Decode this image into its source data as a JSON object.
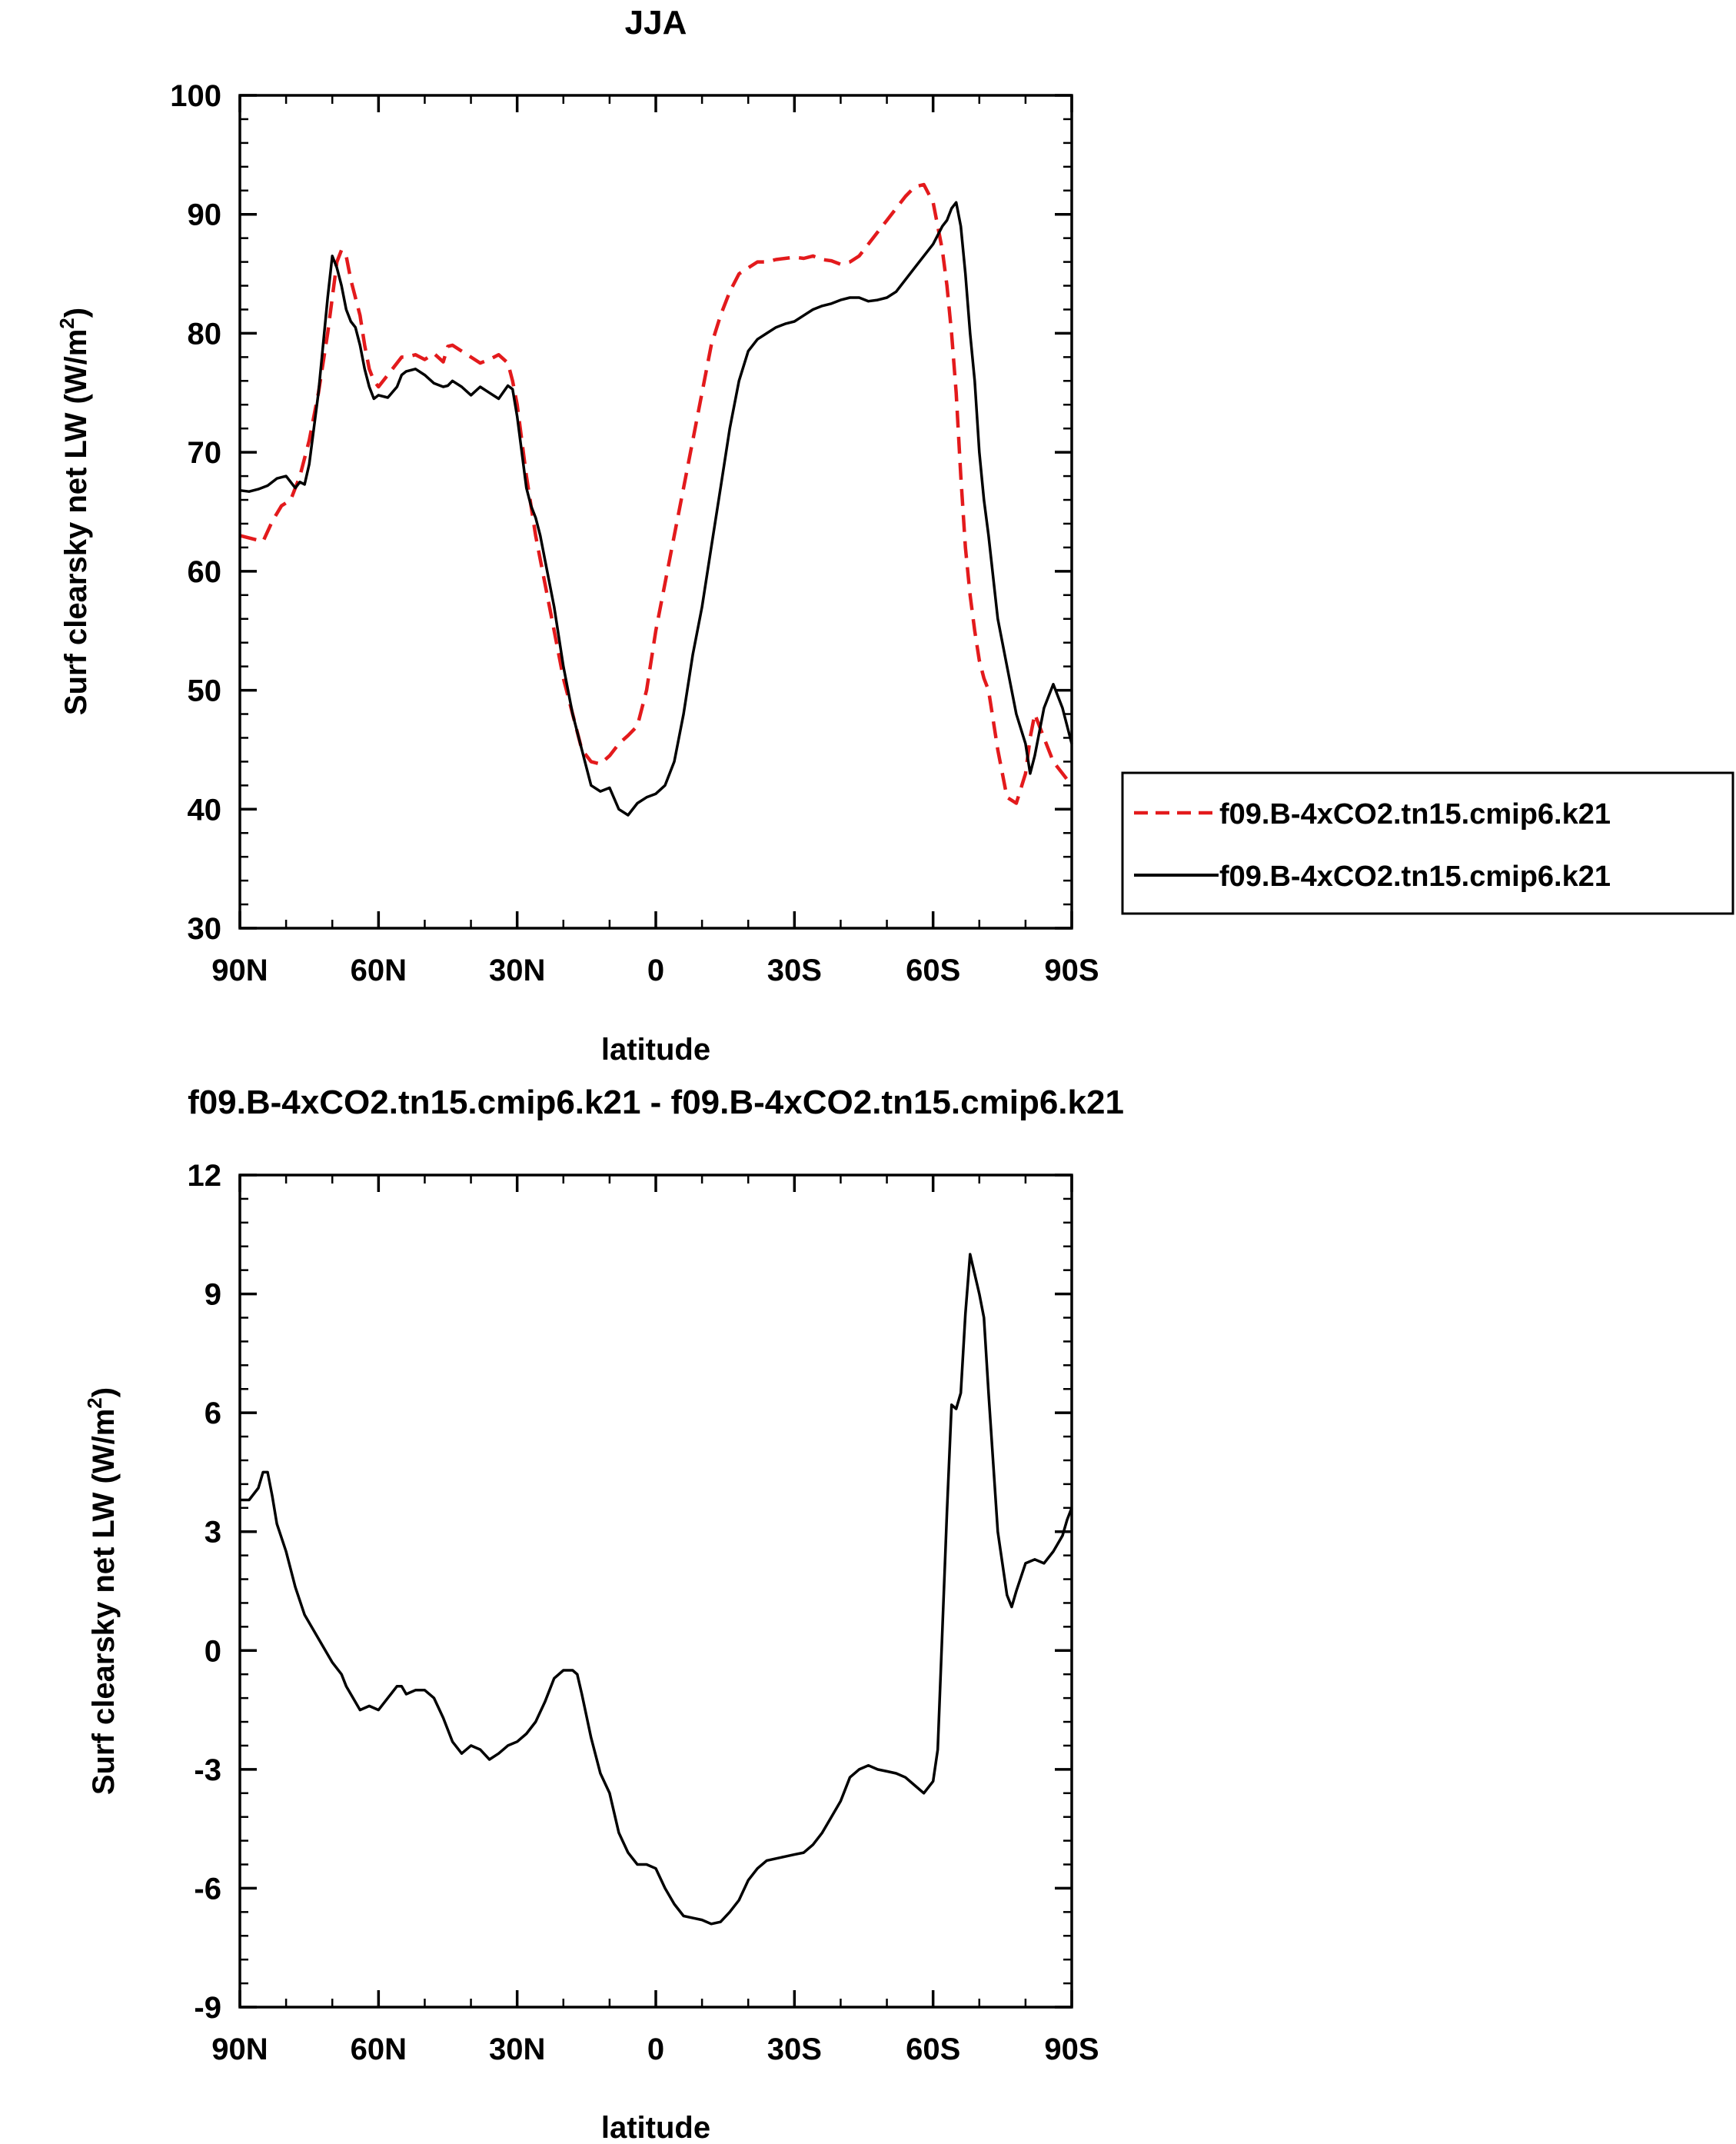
{
  "chart_data": [
    {
      "type": "line",
      "title": "JJA",
      "xlabel": "latitude",
      "ylabel": "Surf clearsky net LW (W/m",
      "ylabel_sup": "2",
      "ylabel_end": ")",
      "xlim": [
        90,
        -90
      ],
      "ylim": [
        30,
        100
      ],
      "xticks": [
        90,
        60,
        30,
        0,
        -30,
        -60,
        -90
      ],
      "xticklabels": [
        "90N",
        "60N",
        "30N",
        "0",
        "30S",
        "60S",
        "90S"
      ],
      "yticks": [
        30,
        40,
        50,
        60,
        70,
        80,
        90,
        100
      ],
      "yticklabels": [
        "30",
        "40",
        "50",
        "60",
        "70",
        "80",
        "90",
        "100"
      ],
      "legend_position": "right",
      "series": [
        {
          "name": "f09.B-4xCO2.tn15.cmip6.k21",
          "color": "#e31a1c",
          "dash": "dashed",
          "x": [
            90,
            87,
            85,
            83,
            81,
            79,
            77,
            75,
            73,
            71,
            69,
            68,
            67,
            66,
            65,
            64,
            63,
            62,
            61,
            60,
            58,
            56,
            55,
            54,
            52,
            50,
            48,
            46,
            45,
            44,
            42,
            40,
            38,
            36,
            34,
            32,
            31,
            30,
            29,
            28,
            27,
            26,
            25,
            24,
            22,
            20,
            18,
            16,
            14,
            12,
            10,
            8,
            6,
            4,
            2,
            0,
            -2,
            -4,
            -6,
            -8,
            -10,
            -12,
            -14,
            -16,
            -18,
            -20,
            -22,
            -24,
            -26,
            -28,
            -30,
            -32,
            -34,
            -36,
            -38,
            -40,
            -42,
            -44,
            -46,
            -48,
            -50,
            -52,
            -54,
            -56,
            -58,
            -60,
            -62,
            -63,
            -64,
            -65,
            -66,
            -67,
            -68,
            -69,
            -70,
            -71,
            -72,
            -74,
            -76,
            -78,
            -80,
            -81,
            -82,
            -84,
            -86,
            -88,
            -90
          ],
          "y": [
            63,
            62.7,
            62.5,
            64.2,
            65.5,
            66,
            68,
            71,
            75,
            80,
            86,
            87,
            86.5,
            84.5,
            83,
            81.5,
            79,
            77,
            76,
            75.5,
            76.5,
            77.5,
            78,
            78,
            78.2,
            77.8,
            78.3,
            77.6,
            78.9,
            79,
            78.5,
            78,
            77.5,
            77.8,
            78.2,
            77.5,
            76,
            74,
            71,
            68,
            65.5,
            63,
            61,
            59,
            55,
            51,
            48,
            45,
            44,
            43.8,
            44.5,
            45.5,
            46.2,
            47,
            50,
            55,
            59,
            63,
            67,
            71,
            75,
            79,
            81.5,
            83.5,
            85,
            85.5,
            86,
            86,
            86.2,
            86.3,
            86.4,
            86.3,
            86.5,
            86.2,
            86.1,
            85.8,
            86,
            86.5,
            87.5,
            88.5,
            89.5,
            90.5,
            91.5,
            92.3,
            92.5,
            91,
            87,
            84,
            80,
            75,
            68,
            62,
            58,
            55,
            52.5,
            51,
            50,
            45,
            41,
            40.5,
            43,
            46,
            48,
            46,
            44,
            43,
            42
          ]
        },
        {
          "name": "f09.B-4xCO2.tn15.cmip6.k21",
          "color": "#000000",
          "dash": "solid",
          "x": [
            90,
            88,
            86,
            84,
            82,
            80,
            79,
            78,
            77,
            76,
            75,
            74,
            73,
            72,
            71,
            70,
            69,
            68,
            67,
            66,
            65,
            64,
            63,
            62,
            61,
            60,
            58,
            56,
            55,
            54,
            52,
            50,
            48,
            46,
            45,
            44,
            42,
            40,
            38,
            36,
            34,
            32,
            31,
            30,
            29,
            28,
            27,
            26,
            25,
            24,
            22,
            20,
            18,
            16,
            14,
            12,
            10,
            8,
            6,
            4,
            2,
            0,
            -2,
            -4,
            -6,
            -8,
            -10,
            -12,
            -14,
            -16,
            -18,
            -20,
            -22,
            -24,
            -26,
            -28,
            -30,
            -32,
            -34,
            -36,
            -38,
            -40,
            -42,
            -44,
            -46,
            -48,
            -50,
            -52,
            -54,
            -56,
            -58,
            -60,
            -62,
            -63,
            -64,
            -65,
            -66,
            -67,
            -68,
            -69,
            -70,
            -71,
            -72,
            -74,
            -76,
            -78,
            -80,
            -81,
            -82,
            -84,
            -86,
            -88,
            -90
          ],
          "y": [
            66.8,
            66.7,
            66.9,
            67.2,
            67.8,
            68,
            67.5,
            67,
            67.5,
            67.3,
            69,
            72,
            75,
            79,
            83,
            86.5,
            85.5,
            84,
            82,
            81,
            80.5,
            79,
            77,
            75.5,
            74.5,
            74.8,
            74.6,
            75.5,
            76.5,
            76.8,
            77,
            76.5,
            75.8,
            75.5,
            75.6,
            76,
            75.5,
            74.8,
            75.5,
            75,
            74.5,
            75.6,
            75.3,
            73,
            70,
            67,
            65.5,
            64.5,
            63,
            61,
            57,
            52,
            48,
            45,
            42,
            41.5,
            41.8,
            40,
            39.5,
            40.5,
            41,
            41.3,
            42,
            44,
            48,
            53,
            57,
            62,
            67,
            72,
            76,
            78.5,
            79.5,
            80,
            80.5,
            80.8,
            81,
            81.5,
            82,
            82.3,
            82.5,
            82.8,
            83,
            83,
            82.7,
            82.8,
            83,
            83.5,
            84.5,
            85.5,
            86.5,
            87.5,
            89,
            89.5,
            90.5,
            91,
            89,
            85,
            80,
            76,
            70,
            66,
            63,
            56,
            52,
            48,
            45.5,
            43,
            44.5,
            48.5,
            50.5,
            48.5,
            45.5
          ]
        }
      ]
    },
    {
      "type": "line",
      "title": "f09.B-4xCO2.tn15.cmip6.k21 - f09.B-4xCO2.tn15.cmip6.k21",
      "xlabel": "latitude",
      "ylabel": "Surf clearsky net LW (W/m",
      "ylabel_sup": "2",
      "ylabel_end": ")",
      "xlim": [
        90,
        -90
      ],
      "ylim": [
        -9,
        12
      ],
      "xticks": [
        90,
        60,
        30,
        0,
        -30,
        -60,
        -90
      ],
      "xticklabels": [
        "90N",
        "60N",
        "30N",
        "0",
        "30S",
        "60S",
        "90S"
      ],
      "yticks": [
        -9,
        -6,
        -3,
        0,
        3,
        6,
        9,
        12
      ],
      "yticklabels": [
        "-9",
        "-6",
        "-3",
        "0",
        "3",
        "6",
        "9",
        "12"
      ],
      "series": [
        {
          "color": "#000000",
          "dash": "solid",
          "x": [
            90,
            88,
            86,
            85,
            84,
            83,
            82,
            80,
            78,
            76,
            74,
            72,
            70,
            68,
            67,
            66,
            64,
            62,
            60,
            58,
            56,
            55,
            54,
            52,
            50,
            48,
            46,
            44,
            42,
            40,
            38,
            36,
            34,
            32,
            30,
            28,
            26,
            24,
            22,
            20,
            19,
            18,
            17,
            16,
            14,
            12,
            10,
            8,
            6,
            4,
            2,
            0,
            -2,
            -4,
            -6,
            -8,
            -10,
            -12,
            -14,
            -16,
            -18,
            -20,
            -22,
            -24,
            -26,
            -28,
            -30,
            -32,
            -34,
            -36,
            -38,
            -40,
            -42,
            -44,
            -46,
            -48,
            -50,
            -52,
            -54,
            -56,
            -58,
            -60,
            -61,
            -62,
            -63,
            -64,
            -65,
            -66,
            -67,
            -68,
            -69,
            -70,
            -71,
            -72,
            -74,
            -76,
            -77,
            -78,
            -80,
            -82,
            -84,
            -86,
            -88,
            -89,
            -90
          ],
          "y": [
            3.8,
            3.8,
            4.1,
            4.5,
            4.5,
            3.9,
            3.2,
            2.5,
            1.6,
            0.9,
            0.5,
            0.1,
            -0.3,
            -0.6,
            -0.9,
            -1.1,
            -1.5,
            -1.4,
            -1.5,
            -1.2,
            -0.9,
            -0.9,
            -1.1,
            -1,
            -1,
            -1.2,
            -1.7,
            -2.3,
            -2.6,
            -2.4,
            -2.5,
            -2.75,
            -2.6,
            -2.4,
            -2.3,
            -2.1,
            -1.8,
            -1.3,
            -0.7,
            -0.5,
            -0.5,
            -0.5,
            -0.6,
            -1.1,
            -2.2,
            -3.1,
            -3.6,
            -4.6,
            -5.1,
            -5.4,
            -5.4,
            -5.5,
            -6,
            -6.4,
            -6.7,
            -6.75,
            -6.8,
            -6.9,
            -6.85,
            -6.6,
            -6.3,
            -5.8,
            -5.5,
            -5.3,
            -5.25,
            -5.2,
            -5.15,
            -5.1,
            -4.9,
            -4.6,
            -4.2,
            -3.8,
            -3.2,
            -3,
            -2.9,
            -3,
            -3.05,
            -3.1,
            -3.2,
            -3.4,
            -3.6,
            -3.3,
            -2.5,
            0.5,
            3.5,
            6.2,
            6.1,
            6.5,
            8.5,
            10,
            9.5,
            9,
            8.4,
            6.5,
            3,
            1.4,
            1.1,
            1.5,
            2.2,
            2.3,
            2.2,
            2.5,
            2.9,
            3.3,
            3.6
          ]
        }
      ]
    }
  ]
}
